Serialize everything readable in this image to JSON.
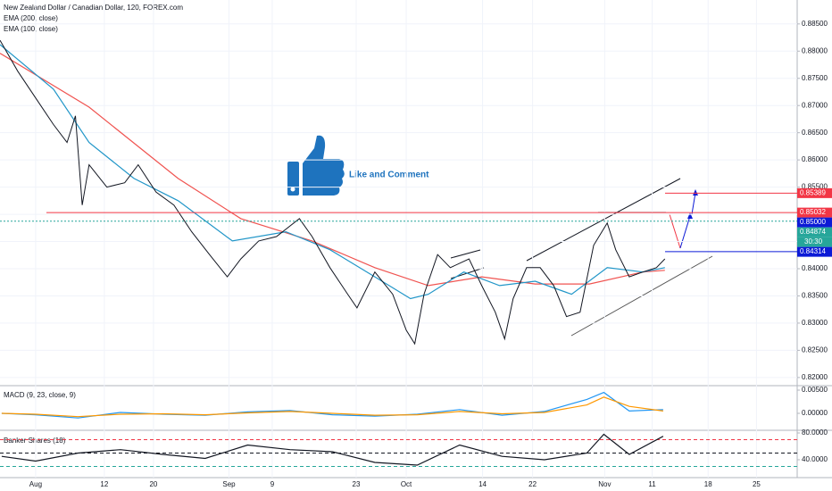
{
  "chart_data": [
    {
      "type": "line",
      "title": "New Zealand Dollar / Canadian Dollar, 120, FOREX.com",
      "annotation": "Like and Comment",
      "x": [
        -4.2,
        -2.1,
        0,
        2.1,
        3.7,
        4.7,
        5.5,
        6.3,
        8.4,
        10.5,
        12.1,
        14.2,
        16.3,
        18.4,
        20.5,
        22.6,
        24.2,
        26.3,
        28.4,
        31.1,
        32.6,
        34.7,
        36.8,
        37.9,
        40,
        42.1,
        43.7,
        44.7,
        45.8,
        47.4,
        48.9,
        51.1,
        52.6,
        54.2,
        55.3,
        56.3,
        57.9,
        59.5,
        61.1,
        62.6,
        64.2,
        65.8,
        67.4,
        68.4,
        70,
        71.6,
        73.2,
        74.2
      ],
      "values": [
        0.882,
        0.8763,
        0.8714,
        0.8665,
        0.8632,
        0.8681,
        0.8517,
        0.8591,
        0.855,
        0.8558,
        0.8591,
        0.8541,
        0.8517,
        0.8468,
        0.8426,
        0.8385,
        0.8418,
        0.8451,
        0.8459,
        0.8492,
        0.8459,
        0.8402,
        0.8353,
        0.8328,
        0.8394,
        0.8353,
        0.8287,
        0.8262,
        0.8353,
        0.8426,
        0.8402,
        0.8418,
        0.8369,
        0.832,
        0.8271,
        0.8345,
        0.8402,
        0.8402,
        0.8369,
        0.8312,
        0.832,
        0.8443,
        0.8484,
        0.8435,
        0.8385,
        0.8394,
        0.8402,
        0.8418
      ],
      "color": "#131722",
      "series": [
        {
          "name": "EMA (200, close)",
          "color": "#f05350",
          "x": [
            -4.2,
            6.3,
            16.8,
            24.2,
            32.6,
            40,
            46.3,
            52.6,
            58.9,
            65.3,
            71.6,
            74.2
          ],
          "values": [
            0.8796,
            0.8697,
            0.8566,
            0.8492,
            0.8451,
            0.8402,
            0.8369,
            0.8385,
            0.8372,
            0.8372,
            0.8394,
            0.8397
          ]
        },
        {
          "name": "EMA (100, close)",
          "color": "#2196c8",
          "x": [
            -4.2,
            2.1,
            6.3,
            11.6,
            16.8,
            23.2,
            29.5,
            34.7,
            40,
            44.2,
            46.3,
            50.5,
            54.7,
            58.9,
            63.2,
            67.4,
            71.6,
            74.2
          ],
          "values": [
            0.8812,
            0.873,
            0.8632,
            0.8566,
            0.8525,
            0.8451,
            0.8468,
            0.8435,
            0.8385,
            0.8345,
            0.8353,
            0.8394,
            0.8369,
            0.8377,
            0.8353,
            0.8402,
            0.8394,
            0.8402
          ]
        }
      ],
      "xlim": [
        -4.2,
        89.8
      ],
      "xticks": [
        {
          "value": 0,
          "label": "Aug"
        },
        {
          "value": 8.1,
          "label": "12"
        },
        {
          "value": 13.9,
          "label": "20"
        },
        {
          "value": 22.8,
          "label": "Sep"
        },
        {
          "value": 27.9,
          "label": "9"
        },
        {
          "value": 37.8,
          "label": "23"
        },
        {
          "value": 43.7,
          "label": "Oct"
        },
        {
          "value": 52.7,
          "label": "14"
        },
        {
          "value": 58.6,
          "label": "22"
        },
        {
          "value": 67.1,
          "label": "Nov"
        },
        {
          "value": 72.7,
          "label": "11"
        },
        {
          "value": 79.3,
          "label": "18"
        },
        {
          "value": 85,
          "label": "25"
        }
      ],
      "ylim": [
        0.8185,
        0.8894
      ],
      "yticks": [
        {
          "value": 0.885,
          "label": "0.88500"
        },
        {
          "value": 0.88,
          "label": "0.88000"
        },
        {
          "value": 0.875,
          "label": "0.87500"
        },
        {
          "value": 0.87,
          "label": "0.87000"
        },
        {
          "value": 0.865,
          "label": "0.86500"
        },
        {
          "value": 0.86,
          "label": "0.86000"
        },
        {
          "value": 0.855,
          "label": "0.85500"
        },
        {
          "value": 0.85,
          "label": "0.85000"
        },
        {
          "value": 0.845,
          "label": "0.84500"
        },
        {
          "value": 0.84,
          "label": "0.84000"
        },
        {
          "value": 0.835,
          "label": "0.83500"
        },
        {
          "value": 0.83,
          "label": "0.83000"
        },
        {
          "value": 0.825,
          "label": "0.82500"
        },
        {
          "value": 0.82,
          "label": "0.82000"
        }
      ],
      "price_labels": [
        {
          "value": 0.85389,
          "label": "0.85389",
          "color": "#f23645"
        },
        {
          "value": 0.85032,
          "label": "0.85032",
          "color": "#f23645"
        },
        {
          "value": 0.85,
          "label": "0.85000",
          "color": "#0c1ad6"
        },
        {
          "value": 0.84874,
          "label": "0.84874",
          "color": "#26a69a"
        },
        {
          "value": 0.84314,
          "label": "0.84314",
          "color": "#0c1ad6"
        }
      ],
      "countdown": "30:30",
      "grid": true
    },
    {
      "type": "line",
      "title": "MACD (9, 23, close, 9)",
      "x": [
        -4,
        0,
        5,
        10,
        15,
        20,
        25,
        30,
        35,
        40,
        45,
        50,
        55,
        60,
        65,
        67,
        70,
        74
      ],
      "series": [
        {
          "color": "#2196f3",
          "values": [
            0,
            -0.0003,
            -0.001,
            0.0002,
            -0.0002,
            -0.0004,
            0.0003,
            0.0006,
            -0.0003,
            -0.0006,
            -0.0002,
            0.0008,
            -0.0004,
            0.0004,
            0.003,
            0.0045,
            0.0005,
            0.0008
          ]
        },
        {
          "color": "#ff9800",
          "values": [
            0,
            -0.0002,
            -0.0007,
            -0.0002,
            -0.0001,
            -0.0003,
            0.0001,
            0.0004,
            0,
            -0.0004,
            -0.0003,
            0.0004,
            -0.0001,
            0.0002,
            0.0018,
            0.0035,
            0.0015,
            0.0005
          ]
        }
      ],
      "xlim": [
        -4.2,
        89.8
      ],
      "ylim": [
        -0.00365,
        0.00596
      ],
      "yticks": [
        {
          "value": 0.005,
          "label": "0.00500"
        },
        {
          "value": 0,
          "label": "0.00000"
        }
      ]
    },
    {
      "type": "line",
      "title": "Banker Shares (18)",
      "x": [
        -4,
        0,
        5,
        10,
        15,
        20,
        25,
        30,
        35,
        40,
        45,
        50,
        55,
        60,
        65,
        67,
        70,
        74
      ],
      "series": [
        {
          "color": "#131722",
          "values": [
            45,
            38,
            50,
            55,
            48,
            42,
            62,
            55,
            52,
            36,
            32,
            62,
            45,
            40,
            50,
            78,
            48,
            75
          ]
        }
      ],
      "levels": [
        {
          "value": 70,
          "color": "#f23645"
        },
        {
          "value": 50,
          "color": "#131722"
        },
        {
          "value": 30,
          "color": "#26a69a"
        }
      ],
      "xlim": [
        -4.2,
        89.8
      ],
      "ylim": [
        13.3,
        84
      ],
      "yticks": [
        {
          "value": 80,
          "label": "80.0000"
        },
        {
          "value": 40,
          "label": "40.0000"
        }
      ]
    }
  ]
}
